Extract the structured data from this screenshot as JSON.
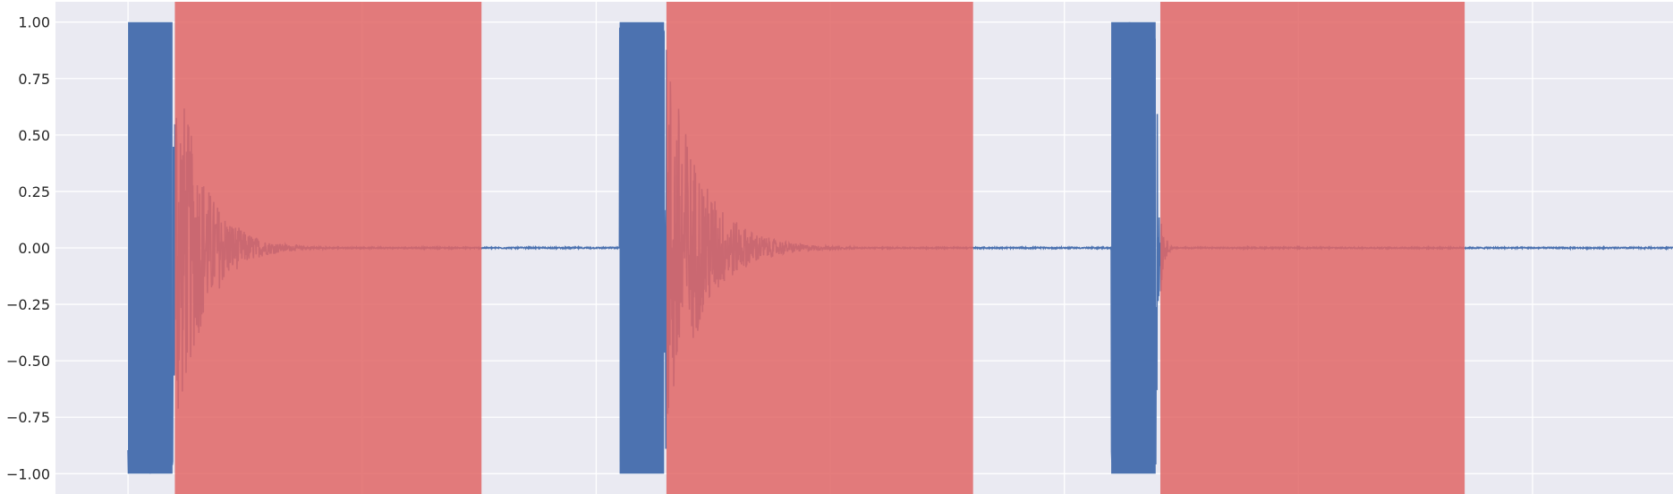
{
  "chart_data": {
    "type": "line",
    "title": "",
    "xlabel": "",
    "ylabel": "",
    "ylim": [
      -1.09,
      1.09
    ],
    "xlim": [
      -0.31,
      6.6
    ],
    "yticks": [
      {
        "value": 1.0,
        "label": "1.00"
      },
      {
        "value": 0.75,
        "label": "0.75"
      },
      {
        "value": 0.5,
        "label": "0.50"
      },
      {
        "value": 0.25,
        "label": "0.25"
      },
      {
        "value": 0.0,
        "label": "0.00"
      },
      {
        "value": -0.25,
        "label": "−0.25"
      },
      {
        "value": -0.5,
        "label": "−0.50"
      },
      {
        "value": -0.75,
        "label": "−0.75"
      },
      {
        "value": -1.0,
        "label": "−1.00"
      }
    ],
    "xgrid": [
      0,
      1,
      2,
      3,
      4,
      5,
      6
    ],
    "grid": true,
    "colors": {
      "background": "#EAEAF2",
      "grid": "#FFFFFF",
      "signal": "#4C72B0",
      "shade": "#E06666"
    },
    "series": [
      {
        "style": "audio-waveform",
        "bursts": [
          {
            "start": 0.0,
            "clip_end": 0.19,
            "decay_tail": 0.85,
            "peak": 1.0
          },
          {
            "start": 2.1,
            "clip_end": 2.29,
            "decay_tail": 3.1,
            "peak": 1.0
          },
          {
            "start": 4.2,
            "clip_end": 4.39,
            "decay_tail": 4.47,
            "peak": 1.0
          }
        ],
        "baseline": 0.0
      }
    ],
    "shaded_regions": [
      {
        "x_start": 0.2,
        "x_end": 1.51
      },
      {
        "x_start": 2.3,
        "x_end": 3.61
      },
      {
        "x_start": 4.41,
        "x_end": 5.71
      }
    ]
  }
}
